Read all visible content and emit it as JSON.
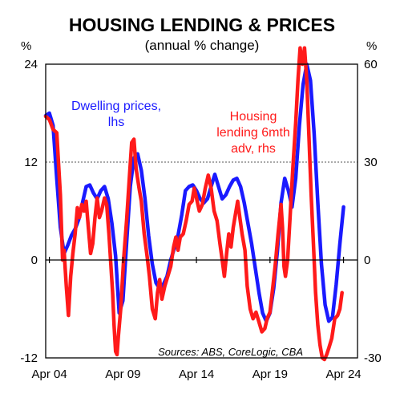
{
  "chart_data": {
    "type": "line",
    "title": "HOUSING LENDING & PRICES",
    "subtitle": "(annual % change)",
    "left_axis": {
      "unit": "%",
      "ylim": [
        -12,
        24
      ],
      "ticks": [
        "24",
        "12",
        "0",
        "-12"
      ]
    },
    "right_axis": {
      "unit": "%",
      "ylim": [
        -30,
        60
      ],
      "ticks": [
        "60",
        "30",
        "0",
        "-30"
      ]
    },
    "x_ticks": [
      {
        "label": "Apr 04",
        "t": 2004.25
      },
      {
        "label": "Apr 09",
        "t": 2009.25
      },
      {
        "label": "Apr 14",
        "t": 2014.25
      },
      {
        "label": "Apr 19",
        "t": 2019.25
      },
      {
        "label": "Apr 24",
        "t": 2024.25
      }
    ],
    "xlim": [
      2004.0,
      2025.2
    ],
    "grid": "dashed horizontal at 24/60 and 12/30",
    "source": "Sources: ABS, CoreLogic, CBA",
    "series": [
      {
        "name": "Dwelling prices, lhs",
        "label_lines": [
          "Dwelling prices,",
          "lhs"
        ],
        "axis": "left",
        "color": "#1a1aff",
        "points": [
          [
            2004.0,
            17.7
          ],
          [
            2004.25,
            18.0
          ],
          [
            2004.5,
            16.5
          ],
          [
            2004.75,
            10.0
          ],
          [
            2005.0,
            4.0
          ],
          [
            2005.25,
            0.8
          ],
          [
            2005.5,
            1.8
          ],
          [
            2005.75,
            3.0
          ],
          [
            2006.0,
            3.8
          ],
          [
            2006.25,
            5.0
          ],
          [
            2006.5,
            7.0
          ],
          [
            2006.75,
            9.0
          ],
          [
            2007.0,
            9.2
          ],
          [
            2007.25,
            8.2
          ],
          [
            2007.5,
            7.5
          ],
          [
            2007.75,
            8.5
          ],
          [
            2008.0,
            9.0
          ],
          [
            2008.25,
            7.5
          ],
          [
            2008.5,
            4.5
          ],
          [
            2008.75,
            0.5
          ],
          [
            2009.0,
            -6.5
          ],
          [
            2009.25,
            -5.0
          ],
          [
            2009.5,
            2.0
          ],
          [
            2009.75,
            9.0
          ],
          [
            2010.0,
            12.5
          ],
          [
            2010.25,
            13.0
          ],
          [
            2010.5,
            11.0
          ],
          [
            2010.75,
            7.5
          ],
          [
            2011.0,
            3.0
          ],
          [
            2011.25,
            -0.5
          ],
          [
            2011.5,
            -2.8
          ],
          [
            2011.75,
            -3.5
          ],
          [
            2012.0,
            -3.0
          ],
          [
            2012.25,
            -2.0
          ],
          [
            2012.5,
            0.0
          ],
          [
            2012.75,
            1.5
          ],
          [
            2013.0,
            3.0
          ],
          [
            2013.25,
            5.5
          ],
          [
            2013.5,
            8.5
          ],
          [
            2013.75,
            9.0
          ],
          [
            2014.0,
            9.2
          ],
          [
            2014.25,
            8.5
          ],
          [
            2014.5,
            7.5
          ],
          [
            2014.75,
            7.0
          ],
          [
            2015.0,
            7.5
          ],
          [
            2015.25,
            9.0
          ],
          [
            2015.5,
            10.5
          ],
          [
            2015.75,
            9.0
          ],
          [
            2016.0,
            7.5
          ],
          [
            2016.25,
            8.0
          ],
          [
            2016.5,
            9.0
          ],
          [
            2016.75,
            9.8
          ],
          [
            2017.0,
            10.0
          ],
          [
            2017.25,
            9.0
          ],
          [
            2017.5,
            7.0
          ],
          [
            2017.75,
            4.5
          ],
          [
            2018.0,
            2.0
          ],
          [
            2018.25,
            -1.0
          ],
          [
            2018.5,
            -4.0
          ],
          [
            2018.75,
            -6.5
          ],
          [
            2019.0,
            -7.5
          ],
          [
            2019.25,
            -6.5
          ],
          [
            2019.5,
            -3.5
          ],
          [
            2019.75,
            1.0
          ],
          [
            2020.0,
            7.0
          ],
          [
            2020.25,
            10.0
          ],
          [
            2020.5,
            8.5
          ],
          [
            2020.75,
            6.5
          ],
          [
            2021.0,
            10.0
          ],
          [
            2021.25,
            16.5
          ],
          [
            2021.5,
            21.5
          ],
          [
            2021.75,
            24.0
          ],
          [
            2022.0,
            22.0
          ],
          [
            2022.25,
            15.5
          ],
          [
            2022.5,
            7.0
          ],
          [
            2022.75,
            -0.5
          ],
          [
            2023.0,
            -5.5
          ],
          [
            2023.25,
            -7.5
          ],
          [
            2023.5,
            -7.0
          ],
          [
            2023.75,
            -3.0
          ],
          [
            2024.0,
            2.0
          ],
          [
            2024.25,
            6.5
          ]
        ]
      },
      {
        "name": "Housing lending 6mth adv, rhs",
        "label_lines": [
          "Housing",
          "lending 6mth",
          "adv, rhs"
        ],
        "axis": "right",
        "color": "#ff1a1a",
        "points": [
          [
            2004.0,
            44.0
          ],
          [
            2004.25,
            43.0
          ],
          [
            2004.5,
            40.0
          ],
          [
            2004.75,
            39.0
          ],
          [
            2005.0,
            20.0
          ],
          [
            2005.15,
            0.0
          ],
          [
            2005.25,
            3.0
          ],
          [
            2005.4,
            -8.0
          ],
          [
            2005.55,
            -17.0
          ],
          [
            2005.7,
            -5.0
          ],
          [
            2005.85,
            2.0
          ],
          [
            2006.0,
            8.0
          ],
          [
            2006.15,
            16.0
          ],
          [
            2006.3,
            13.0
          ],
          [
            2006.45,
            17.0
          ],
          [
            2006.6,
            15.0
          ],
          [
            2006.75,
            18.0
          ],
          [
            2006.9,
            10.0
          ],
          [
            2007.05,
            2.0
          ],
          [
            2007.2,
            5.0
          ],
          [
            2007.35,
            13.0
          ],
          [
            2007.5,
            19.0
          ],
          [
            2007.65,
            13.0
          ],
          [
            2007.8,
            15.0
          ],
          [
            2008.0,
            19.0
          ],
          [
            2008.15,
            17.0
          ],
          [
            2008.3,
            8.0
          ],
          [
            2008.45,
            -3.0
          ],
          [
            2008.55,
            -10.0
          ],
          [
            2008.65,
            -20.0
          ],
          [
            2008.75,
            -28.0
          ],
          [
            2008.85,
            -29.0
          ],
          [
            2008.95,
            -23.0
          ],
          [
            2009.1,
            -15.0
          ],
          [
            2009.3,
            0.0
          ],
          [
            2009.5,
            12.0
          ],
          [
            2009.7,
            26.0
          ],
          [
            2009.85,
            36.0
          ],
          [
            2010.0,
            37.0
          ],
          [
            2010.15,
            28.0
          ],
          [
            2010.35,
            22.0
          ],
          [
            2010.5,
            18.0
          ],
          [
            2010.7,
            8.0
          ],
          [
            2010.9,
            1.0
          ],
          [
            2011.05,
            -5.0
          ],
          [
            2011.25,
            -15.0
          ],
          [
            2011.45,
            -18.0
          ],
          [
            2011.6,
            -10.0
          ],
          [
            2011.75,
            -6.0
          ],
          [
            2011.9,
            -12.0
          ],
          [
            2012.1,
            -8.0
          ],
          [
            2012.3,
            -5.0
          ],
          [
            2012.5,
            -2.0
          ],
          [
            2012.7,
            4.0
          ],
          [
            2012.85,
            7.0
          ],
          [
            2013.0,
            3.0
          ],
          [
            2013.15,
            7.0
          ],
          [
            2013.35,
            8.0
          ],
          [
            2013.55,
            12.0
          ],
          [
            2013.75,
            17.0
          ],
          [
            2013.95,
            18.0
          ],
          [
            2014.1,
            22.0
          ],
          [
            2014.25,
            19.0
          ],
          [
            2014.45,
            15.0
          ],
          [
            2014.65,
            17.0
          ],
          [
            2014.85,
            22.0
          ],
          [
            2015.05,
            26.0
          ],
          [
            2015.25,
            22.0
          ],
          [
            2015.45,
            15.0
          ],
          [
            2015.65,
            12.0
          ],
          [
            2015.85,
            5.0
          ],
          [
            2016.0,
            0.0
          ],
          [
            2016.15,
            -5.0
          ],
          [
            2016.3,
            2.0
          ],
          [
            2016.45,
            8.0
          ],
          [
            2016.6,
            4.0
          ],
          [
            2016.75,
            10.0
          ],
          [
            2016.9,
            14.0
          ],
          [
            2017.05,
            18.0
          ],
          [
            2017.2,
            13.0
          ],
          [
            2017.35,
            8.0
          ],
          [
            2017.55,
            3.0
          ],
          [
            2017.7,
            -8.0
          ],
          [
            2017.9,
            -15.0
          ],
          [
            2018.1,
            -18.0
          ],
          [
            2018.3,
            -16.0
          ],
          [
            2018.5,
            -19.0
          ],
          [
            2018.7,
            -22.0
          ],
          [
            2018.9,
            -21.0
          ],
          [
            2019.05,
            -18.0
          ],
          [
            2019.25,
            -16.0
          ],
          [
            2019.45,
            -8.0
          ],
          [
            2019.6,
            -2.0
          ],
          [
            2019.8,
            8.0
          ],
          [
            2020.0,
            17.0
          ],
          [
            2020.1,
            10.0
          ],
          [
            2020.2,
            -2.0
          ],
          [
            2020.3,
            -5.0
          ],
          [
            2020.45,
            0.0
          ],
          [
            2020.6,
            12.0
          ],
          [
            2020.8,
            28.0
          ],
          [
            2021.0,
            42.0
          ],
          [
            2021.15,
            55.0
          ],
          [
            2021.3,
            65.0
          ],
          [
            2021.45,
            60.0
          ],
          [
            2021.6,
            65.0
          ],
          [
            2021.75,
            55.0
          ],
          [
            2021.9,
            38.0
          ],
          [
            2022.05,
            20.0
          ],
          [
            2022.2,
            5.0
          ],
          [
            2022.35,
            -10.0
          ],
          [
            2022.5,
            -20.0
          ],
          [
            2022.65,
            -26.0
          ],
          [
            2022.8,
            -30.0
          ],
          [
            2022.95,
            -30.5
          ],
          [
            2023.1,
            -29.0
          ],
          [
            2023.25,
            -27.0
          ],
          [
            2023.45,
            -24.0
          ],
          [
            2023.65,
            -18.0
          ],
          [
            2023.85,
            -17.0
          ],
          [
            2024.0,
            -15.0
          ],
          [
            2024.15,
            -10.0
          ]
        ]
      }
    ]
  }
}
